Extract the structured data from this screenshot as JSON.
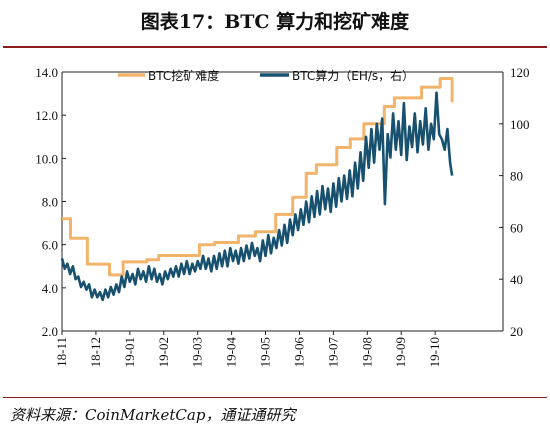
{
  "page": {
    "title": "图表17：BTC 算力和挖矿难度",
    "source": "资料来源：CoinMarketCap，通证通研究"
  },
  "colors": {
    "difficulty": "#f2b36b",
    "hashrate": "#17516f",
    "rule": "#8a1c1c"
  },
  "chart_data": {
    "type": "line",
    "title": "图表17：BTC 算力和挖矿难度",
    "grid": false,
    "legend_position": "top",
    "x_tick_labels": [
      "18-11",
      "18-12",
      "19-01",
      "19-02",
      "19-03",
      "19-04",
      "19-05",
      "19-06",
      "19-07",
      "19-08",
      "19-09",
      "19-10"
    ],
    "x_range": [
      0,
      13
    ],
    "y_left": {
      "ylim": [
        2.0,
        14.0
      ],
      "ticks": [
        "2.0",
        "4.0",
        "6.0",
        "8.0",
        "10.0",
        "12.0",
        "14.0"
      ]
    },
    "y_right": {
      "ylim": [
        20,
        120
      ],
      "ticks": [
        "20",
        "40",
        "60",
        "80",
        "100",
        "120"
      ]
    },
    "series": [
      {
        "name": "BTC挖矿难度",
        "axis": "left",
        "step": true,
        "points": [
          [
            0.0,
            7.2
          ],
          [
            0.25,
            6.3
          ],
          [
            0.75,
            5.1
          ],
          [
            1.4,
            4.6
          ],
          [
            1.8,
            5.2
          ],
          [
            2.5,
            5.3
          ],
          [
            2.85,
            5.5
          ],
          [
            4.05,
            6.0
          ],
          [
            4.5,
            6.1
          ],
          [
            5.2,
            6.4
          ],
          [
            5.7,
            6.6
          ],
          [
            6.3,
            7.4
          ],
          [
            6.8,
            8.2
          ],
          [
            7.2,
            9.3
          ],
          [
            7.5,
            9.7
          ],
          [
            8.1,
            10.5
          ],
          [
            8.5,
            10.9
          ],
          [
            8.9,
            11.6
          ],
          [
            9.5,
            12.4
          ],
          [
            9.8,
            12.8
          ],
          [
            10.6,
            13.3
          ],
          [
            11.15,
            13.7
          ],
          [
            11.5,
            12.6
          ]
        ]
      },
      {
        "name": "BTC算力（EH/s，右）",
        "axis": "right",
        "step": false,
        "points": [
          [
            0.0,
            48
          ],
          [
            0.08,
            44
          ],
          [
            0.16,
            46
          ],
          [
            0.24,
            42
          ],
          [
            0.32,
            45
          ],
          [
            0.4,
            40
          ],
          [
            0.48,
            41
          ],
          [
            0.56,
            37
          ],
          [
            0.64,
            39
          ],
          [
            0.72,
            36
          ],
          [
            0.8,
            38
          ],
          [
            0.88,
            33
          ],
          [
            0.96,
            36
          ],
          [
            1.04,
            33
          ],
          [
            1.12,
            35
          ],
          [
            1.2,
            32
          ],
          [
            1.28,
            36
          ],
          [
            1.36,
            33
          ],
          [
            1.44,
            37
          ],
          [
            1.52,
            34
          ],
          [
            1.6,
            38
          ],
          [
            1.68,
            35
          ],
          [
            1.76,
            41
          ],
          [
            1.84,
            37
          ],
          [
            1.92,
            43
          ],
          [
            2.0,
            39
          ],
          [
            2.08,
            42
          ],
          [
            2.16,
            38
          ],
          [
            2.24,
            44
          ],
          [
            2.32,
            40
          ],
          [
            2.4,
            43
          ],
          [
            2.48,
            39
          ],
          [
            2.56,
            45
          ],
          [
            2.64,
            40
          ],
          [
            2.72,
            44
          ],
          [
            2.8,
            39
          ],
          [
            2.88,
            42
          ],
          [
            2.96,
            38
          ],
          [
            3.04,
            43
          ],
          [
            3.12,
            40
          ],
          [
            3.2,
            44
          ],
          [
            3.28,
            41
          ],
          [
            3.36,
            45
          ],
          [
            3.44,
            41
          ],
          [
            3.52,
            46
          ],
          [
            3.6,
            42
          ],
          [
            3.68,
            47
          ],
          [
            3.76,
            42
          ],
          [
            3.84,
            46
          ],
          [
            3.92,
            43
          ],
          [
            4.0,
            47
          ],
          [
            4.08,
            44
          ],
          [
            4.16,
            49
          ],
          [
            4.24,
            44
          ],
          [
            4.32,
            48
          ],
          [
            4.4,
            43
          ],
          [
            4.48,
            49
          ],
          [
            4.56,
            44
          ],
          [
            4.64,
            50
          ],
          [
            4.72,
            45
          ],
          [
            4.8,
            51
          ],
          [
            4.88,
            45
          ],
          [
            4.96,
            52
          ],
          [
            5.04,
            47
          ],
          [
            5.12,
            51
          ],
          [
            5.2,
            46
          ],
          [
            5.28,
            52
          ],
          [
            5.36,
            47
          ],
          [
            5.44,
            53
          ],
          [
            5.52,
            48
          ],
          [
            5.6,
            54
          ],
          [
            5.68,
            49
          ],
          [
            5.76,
            52
          ],
          [
            5.84,
            47
          ],
          [
            5.92,
            55
          ],
          [
            6.0,
            49
          ],
          [
            6.08,
            57
          ],
          [
            6.16,
            50
          ],
          [
            6.24,
            56
          ],
          [
            6.32,
            52
          ],
          [
            6.4,
            59
          ],
          [
            6.48,
            53
          ],
          [
            6.56,
            61
          ],
          [
            6.64,
            54
          ],
          [
            6.72,
            63
          ],
          [
            6.8,
            57
          ],
          [
            6.88,
            65
          ],
          [
            6.96,
            59
          ],
          [
            7.04,
            67
          ],
          [
            7.12,
            61
          ],
          [
            7.2,
            70
          ],
          [
            7.28,
            62
          ],
          [
            7.36,
            72
          ],
          [
            7.44,
            64
          ],
          [
            7.52,
            74
          ],
          [
            7.6,
            65
          ],
          [
            7.68,
            76
          ],
          [
            7.76,
            67
          ],
          [
            7.84,
            75
          ],
          [
            7.92,
            66
          ],
          [
            8.0,
            77
          ],
          [
            8.08,
            68
          ],
          [
            8.16,
            79
          ],
          [
            8.24,
            70
          ],
          [
            8.32,
            80
          ],
          [
            8.4,
            71
          ],
          [
            8.48,
            82
          ],
          [
            8.56,
            72
          ],
          [
            8.64,
            85
          ],
          [
            8.72,
            75
          ],
          [
            8.8,
            89
          ],
          [
            8.88,
            78
          ],
          [
            8.96,
            95
          ],
          [
            9.04,
            83
          ],
          [
            9.12,
            98
          ],
          [
            9.2,
            85
          ],
          [
            9.28,
            100
          ],
          [
            9.36,
            90
          ],
          [
            9.44,
            102
          ],
          [
            9.52,
            69
          ],
          [
            9.6,
            96
          ],
          [
            9.68,
            87
          ],
          [
            9.76,
            104
          ],
          [
            9.84,
            90
          ],
          [
            9.92,
            101
          ],
          [
            10.0,
            88
          ],
          [
            10.08,
            108
          ],
          [
            10.16,
            86
          ],
          [
            10.24,
            99
          ],
          [
            10.32,
            91
          ],
          [
            10.4,
            104
          ],
          [
            10.48,
            89
          ],
          [
            10.56,
            101
          ],
          [
            10.64,
            92
          ],
          [
            10.72,
            106
          ],
          [
            10.8,
            90
          ],
          [
            10.88,
            100
          ],
          [
            10.96,
            94
          ],
          [
            11.04,
            112
          ],
          [
            11.12,
            96
          ],
          [
            11.2,
            94
          ],
          [
            11.28,
            90
          ],
          [
            11.36,
            98
          ],
          [
            11.44,
            85
          ],
          [
            11.5,
            80
          ]
        ]
      }
    ]
  }
}
